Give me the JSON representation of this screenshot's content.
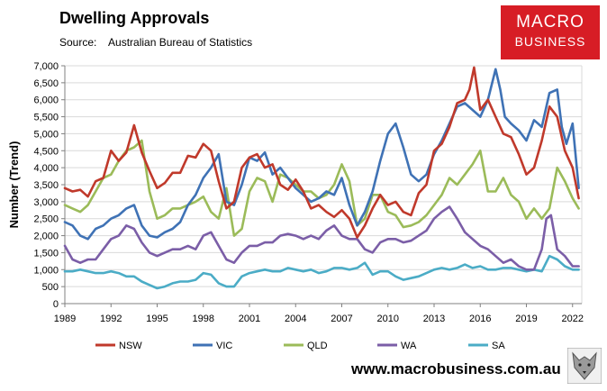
{
  "header": {
    "title": "Dwelling Approvals",
    "source_label": "Source:",
    "source_value": "Australian Bureau of Statistics"
  },
  "logo": {
    "line1": "MACRO",
    "line2": "BUSINESS"
  },
  "footer": {
    "url": "www.macrobusiness.com.au"
  },
  "colors": {
    "NSW": "#c0392b",
    "VIC": "#3f72b5",
    "QLD": "#9bbb59",
    "WA": "#7b5ea7",
    "SA": "#4bacc6",
    "brand": "#d71d25"
  },
  "chart_data": {
    "type": "line",
    "title": "Dwelling Approvals",
    "ylabel": "Number (Trend)",
    "xlabel": "",
    "xlim": [
      1989,
      2022.6
    ],
    "ylim": [
      0,
      7000
    ],
    "yticks": [
      0,
      500,
      1000,
      1500,
      2000,
      2500,
      3000,
      3500,
      4000,
      4500,
      5000,
      5500,
      6000,
      6500,
      7000
    ],
    "ytick_labels": [
      "0",
      "500",
      "1,000",
      "1,500",
      "2,000",
      "2,500",
      "3,000",
      "3,500",
      "4,000",
      "4,500",
      "5,000",
      "5,500",
      "6,000",
      "6,500",
      "7,000"
    ],
    "xticks": [
      1989,
      1992,
      1995,
      1998,
      2001,
      2004,
      2007,
      2010,
      2013,
      2016,
      2019,
      2022
    ],
    "xtick_labels": [
      "1989",
      "1992",
      "1995",
      "1998",
      "2001",
      "2004",
      "2007",
      "2010",
      "2013",
      "2016",
      "2019",
      "2022"
    ],
    "legend_position": "bottom",
    "series": [
      {
        "name": "NSW",
        "color": "#c0392b",
        "x": [
          1989.0,
          1989.5,
          1990.0,
          1990.5,
          1991.0,
          1991.5,
          1992.0,
          1992.5,
          1993.0,
          1993.5,
          1994.0,
          1994.5,
          1995.0,
          1995.5,
          1996.0,
          1996.5,
          1997.0,
          1997.5,
          1998.0,
          1998.5,
          1999.0,
          1999.5,
          2000.0,
          2000.5,
          2001.0,
          2001.5,
          2002.0,
          2002.5,
          2003.0,
          2003.5,
          2004.0,
          2004.5,
          2005.0,
          2005.5,
          2006.0,
          2006.5,
          2007.0,
          2007.5,
          2008.0,
          2008.5,
          2009.0,
          2009.5,
          2010.0,
          2010.5,
          2011.0,
          2011.5,
          2012.0,
          2012.5,
          2013.0,
          2013.5,
          2014.0,
          2014.5,
          2015.0,
          2015.3,
          2015.6,
          2016.0,
          2016.5,
          2017.0,
          2017.5,
          2018.0,
          2018.5,
          2019.0,
          2019.5,
          2020.0,
          2020.5,
          2021.0,
          2021.5,
          2022.0,
          2022.4
        ],
        "y": [
          3400,
          3300,
          3350,
          3150,
          3600,
          3700,
          4500,
          4200,
          4450,
          5250,
          4450,
          3900,
          3400,
          3550,
          3850,
          3850,
          4350,
          4300,
          4700,
          4500,
          3600,
          2800,
          3000,
          4000,
          4300,
          4400,
          4000,
          4100,
          3500,
          3350,
          3650,
          3300,
          2800,
          2900,
          2700,
          2550,
          2750,
          2500,
          1950,
          2300,
          2800,
          3200,
          2900,
          3000,
          2700,
          2600,
          3250,
          3500,
          4500,
          4700,
          5200,
          5900,
          6000,
          6300,
          6950,
          5700,
          6000,
          5500,
          5000,
          4900,
          4400,
          3800,
          4000,
          4800,
          5800,
          5500,
          4500,
          4000,
          3100
        ]
      },
      {
        "name": "VIC",
        "color": "#3f72b5",
        "x": [
          1989.0,
          1989.5,
          1990.0,
          1990.5,
          1991.0,
          1991.5,
          1992.0,
          1992.5,
          1993.0,
          1993.5,
          1994.0,
          1994.5,
          1995.0,
          1995.5,
          1996.0,
          1996.5,
          1997.0,
          1997.5,
          1998.0,
          1998.5,
          1999.0,
          1999.5,
          2000.0,
          2000.5,
          2001.0,
          2001.5,
          2002.0,
          2002.5,
          2003.0,
          2003.5,
          2004.0,
          2004.5,
          2005.0,
          2005.5,
          2006.0,
          2006.5,
          2007.0,
          2007.5,
          2008.0,
          2008.5,
          2009.0,
          2009.5,
          2010.0,
          2010.5,
          2011.0,
          2011.5,
          2012.0,
          2012.5,
          2013.0,
          2013.5,
          2014.0,
          2014.5,
          2015.0,
          2015.5,
          2016.0,
          2016.5,
          2017.0,
          2017.3,
          2017.6,
          2018.0,
          2018.5,
          2019.0,
          2019.5,
          2020.0,
          2020.5,
          2021.0,
          2021.3,
          2021.6,
          2022.0,
          2022.4
        ],
        "y": [
          2400,
          2300,
          2000,
          1900,
          2200,
          2300,
          2500,
          2600,
          2800,
          2900,
          2300,
          2000,
          1950,
          2100,
          2200,
          2400,
          2900,
          3200,
          3700,
          4000,
          4400,
          3000,
          2900,
          3500,
          4300,
          4200,
          4450,
          3800,
          4000,
          3700,
          3400,
          3200,
          3000,
          3100,
          3300,
          3200,
          3700,
          2900,
          2300,
          2700,
          3300,
          4200,
          5000,
          5300,
          4600,
          3800,
          3600,
          3800,
          4400,
          4800,
          5300,
          5800,
          5900,
          5700,
          5500,
          6000,
          6900,
          6300,
          5500,
          5300,
          5100,
          4800,
          5400,
          5200,
          6200,
          6300,
          5200,
          4700,
          5300,
          3400
        ]
      },
      {
        "name": "QLD",
        "color": "#9bbb59",
        "x": [
          1989.0,
          1989.5,
          1990.0,
          1990.5,
          1991.0,
          1991.5,
          1992.0,
          1992.5,
          1993.0,
          1993.5,
          1994.0,
          1994.5,
          1995.0,
          1995.5,
          1996.0,
          1996.5,
          1997.0,
          1997.5,
          1998.0,
          1998.5,
          1999.0,
          1999.5,
          2000.0,
          2000.5,
          2001.0,
          2001.5,
          2002.0,
          2002.5,
          2003.0,
          2003.5,
          2004.0,
          2004.5,
          2005.0,
          2005.5,
          2006.0,
          2006.5,
          2007.0,
          2007.5,
          2008.0,
          2008.5,
          2009.0,
          2009.5,
          2010.0,
          2010.5,
          2011.0,
          2011.5,
          2012.0,
          2012.5,
          2013.0,
          2013.5,
          2014.0,
          2014.5,
          2015.0,
          2015.5,
          2016.0,
          2016.5,
          2017.0,
          2017.5,
          2018.0,
          2018.5,
          2019.0,
          2019.5,
          2020.0,
          2020.5,
          2021.0,
          2021.5,
          2022.0,
          2022.4
        ],
        "y": [
          2900,
          2800,
          2700,
          2900,
          3300,
          3700,
          3800,
          4200,
          4500,
          4600,
          4800,
          3300,
          2500,
          2600,
          2800,
          2800,
          2900,
          3000,
          3150,
          2700,
          2500,
          3400,
          2000,
          2200,
          3300,
          3700,
          3600,
          3000,
          3800,
          3700,
          3500,
          3300,
          3300,
          3100,
          3200,
          3500,
          4100,
          3600,
          2300,
          2500,
          3200,
          3200,
          2700,
          2600,
          2250,
          2300,
          2400,
          2600,
          2900,
          3200,
          3700,
          3500,
          3800,
          4100,
          4500,
          3300,
          3300,
          3700,
          3200,
          3000,
          2500,
          2800,
          2500,
          2800,
          4000,
          3600,
          3100,
          2800
        ]
      },
      {
        "name": "WA",
        "color": "#7b5ea7",
        "x": [
          1989.0,
          1989.5,
          1990.0,
          1990.5,
          1991.0,
          1991.5,
          1992.0,
          1992.5,
          1993.0,
          1993.5,
          1994.0,
          1994.5,
          1995.0,
          1995.5,
          1996.0,
          1996.5,
          1997.0,
          1997.5,
          1998.0,
          1998.5,
          1999.0,
          1999.5,
          2000.0,
          2000.5,
          2001.0,
          2001.5,
          2002.0,
          2002.5,
          2003.0,
          2003.5,
          2004.0,
          2004.5,
          2005.0,
          2005.5,
          2006.0,
          2006.5,
          2007.0,
          2007.5,
          2008.0,
          2008.5,
          2009.0,
          2009.5,
          2010.0,
          2010.5,
          2011.0,
          2011.5,
          2012.0,
          2012.5,
          2013.0,
          2013.5,
          2014.0,
          2014.5,
          2015.0,
          2015.5,
          2016.0,
          2016.5,
          2017.0,
          2017.5,
          2018.0,
          2018.5,
          2019.0,
          2019.5,
          2020.0,
          2020.3,
          2020.6,
          2021.0,
          2021.5,
          2022.0,
          2022.4
        ],
        "y": [
          1700,
          1300,
          1200,
          1300,
          1300,
          1600,
          1900,
          2000,
          2300,
          2200,
          1800,
          1500,
          1400,
          1500,
          1600,
          1600,
          1700,
          1600,
          2000,
          2100,
          1700,
          1300,
          1200,
          1500,
          1700,
          1700,
          1800,
          1800,
          2000,
          2050,
          2000,
          1900,
          2000,
          1900,
          2150,
          2300,
          2000,
          1900,
          1900,
          1600,
          1500,
          1800,
          1900,
          1900,
          1800,
          1850,
          2000,
          2150,
          2500,
          2700,
          2850,
          2500,
          2100,
          1900,
          1700,
          1600,
          1400,
          1200,
          1300,
          1100,
          1000,
          1000,
          1600,
          2500,
          2600,
          1600,
          1400,
          1100,
          1100
        ]
      },
      {
        "name": "SA",
        "color": "#4bacc6",
        "x": [
          1989.0,
          1989.5,
          1990.0,
          1990.5,
          1991.0,
          1991.5,
          1992.0,
          1992.5,
          1993.0,
          1993.5,
          1994.0,
          1994.5,
          1995.0,
          1995.5,
          1996.0,
          1996.5,
          1997.0,
          1997.5,
          1998.0,
          1998.5,
          1999.0,
          1999.5,
          2000.0,
          2000.5,
          2001.0,
          2001.5,
          2002.0,
          2002.5,
          2003.0,
          2003.5,
          2004.0,
          2004.5,
          2005.0,
          2005.5,
          2006.0,
          2006.5,
          2007.0,
          2007.5,
          2008.0,
          2008.5,
          2009.0,
          2009.5,
          2010.0,
          2010.5,
          2011.0,
          2011.5,
          2012.0,
          2012.5,
          2013.0,
          2013.5,
          2014.0,
          2014.5,
          2015.0,
          2015.5,
          2016.0,
          2016.5,
          2017.0,
          2017.5,
          2018.0,
          2018.5,
          2019.0,
          2019.5,
          2020.0,
          2020.5,
          2021.0,
          2021.5,
          2022.0,
          2022.4
        ],
        "y": [
          950,
          950,
          1000,
          950,
          900,
          900,
          950,
          900,
          800,
          800,
          650,
          550,
          450,
          500,
          600,
          650,
          650,
          700,
          900,
          850,
          600,
          500,
          500,
          800,
          900,
          950,
          1000,
          950,
          950,
          1050,
          1000,
          950,
          1000,
          900,
          950,
          1050,
          1050,
          1000,
          1050,
          1200,
          850,
          950,
          950,
          800,
          700,
          750,
          800,
          900,
          1000,
          1050,
          1000,
          1050,
          1150,
          1050,
          1100,
          1000,
          1000,
          1050,
          1050,
          1000,
          950,
          1000,
          950,
          1400,
          1300,
          1100,
          1000,
          1000
        ]
      }
    ]
  }
}
